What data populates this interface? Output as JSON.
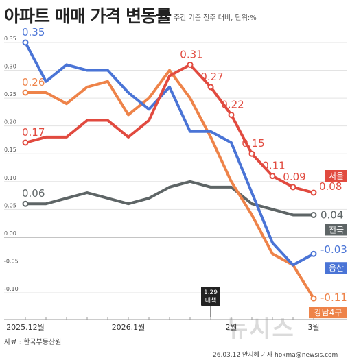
{
  "header": {
    "title": "아파트 매매 가격 변동률",
    "subtitle": "주간 기준 전주 대비, 단위:%"
  },
  "footer": {
    "source": "자료 : 한국부동산원",
    "credit": "26.03.12 안지혜 기자 hokma@newsis.com",
    "watermark": "뉴시스"
  },
  "colors": {
    "서울": "#e14a3f",
    "전국": "#5e6566",
    "용산": "#4a74d6",
    "강남4구": "#ee8349",
    "grid": "#e3e3e3",
    "zero": "#888888",
    "axis_text": "#555555"
  },
  "chart_data": {
    "type": "line",
    "x": [
      "2025.12월",
      "",
      "",
      "",
      "",
      "2026.1월",
      "",
      "",
      "",
      "",
      "2월",
      "",
      "",
      "",
      "3월"
    ],
    "xticks": [
      "2025.12월",
      "2026.1월",
      "2월",
      "3월"
    ],
    "ylim": [
      -0.125,
      0.36
    ],
    "yticks": [
      "0.35",
      "0.30",
      "0.25",
      "0.20",
      "0.15",
      "0.10",
      "0.05",
      "0.00",
      "-0.05",
      "-0.10"
    ],
    "grid": true,
    "annotation": {
      "label": "1.29\n대책",
      "x_index": 9
    },
    "series": [
      {
        "name": "전국",
        "values": [
          0.06,
          0.06,
          0.07,
          0.08,
          0.07,
          0.06,
          0.07,
          0.09,
          0.1,
          0.09,
          0.09,
          0.06,
          0.05,
          0.04,
          0.04
        ],
        "start_label": "0.06",
        "end_label": "0.04"
      },
      {
        "name": "강남4구",
        "values": [
          0.26,
          0.26,
          0.24,
          0.27,
          0.28,
          0.22,
          0.25,
          0.3,
          0.25,
          0.18,
          0.1,
          0.04,
          -0.03,
          -0.05,
          -0.11
        ],
        "start_label": "0.26",
        "end_label": "-0.11"
      },
      {
        "name": "용산",
        "values": [
          0.35,
          0.28,
          0.31,
          0.3,
          0.3,
          0.26,
          0.23,
          0.27,
          0.19,
          0.19,
          0.17,
          0.08,
          -0.01,
          -0.05,
          -0.03
        ],
        "start_label": "0.35",
        "end_label": "-0.03"
      },
      {
        "name": "서울",
        "values": [
          0.17,
          0.18,
          0.18,
          0.21,
          0.21,
          0.18,
          0.21,
          0.29,
          0.31,
          0.27,
          0.22,
          0.15,
          0.11,
          0.09,
          0.08
        ],
        "start_label": "0.17",
        "end_label": "0.08",
        "point_labels": {
          "8": "0.31",
          "9": "0.27",
          "10": "0.22",
          "11": "0.15",
          "12": "0.11",
          "13": "0.09"
        }
      }
    ]
  }
}
